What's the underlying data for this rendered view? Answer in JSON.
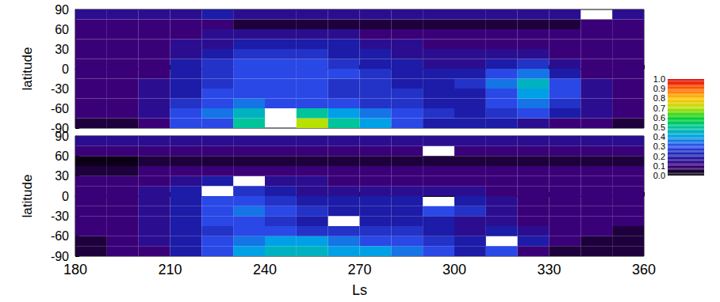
{
  "chart_data": [
    {
      "type": "heatmap",
      "y_label": "latitude",
      "tick_labels": "y",
      "x_edges": [
        180,
        190,
        200,
        210,
        220,
        230,
        240,
        250,
        260,
        270,
        280,
        290,
        300,
        310,
        320,
        330,
        340,
        350,
        360
      ],
      "y_edges": [
        -90,
        -75,
        -60,
        -45,
        -30,
        -15,
        0,
        15,
        30,
        45,
        60,
        75,
        90
      ],
      "cells": [
        [
          0.05,
          0.05,
          0.1,
          0.3,
          0.3,
          0.5,
          null,
          0.7,
          0.5,
          0.4,
          0.3,
          0.2,
          0.2,
          0.2,
          0.15,
          0.1,
          0.1,
          0.05
        ],
        [
          0.1,
          0.1,
          0.15,
          0.3,
          0.35,
          0.45,
          null,
          0.5,
          0.4,
          0.35,
          0.3,
          0.25,
          0.2,
          0.25,
          0.3,
          0.2,
          0.15,
          0.1
        ],
        [
          0.1,
          0.1,
          0.15,
          0.25,
          0.3,
          0.35,
          0.3,
          0.3,
          0.3,
          0.25,
          0.25,
          0.2,
          0.2,
          0.3,
          0.35,
          0.25,
          0.15,
          0.1
        ],
        [
          0.1,
          0.1,
          0.15,
          0.2,
          0.3,
          0.3,
          0.3,
          0.3,
          0.25,
          0.25,
          0.25,
          0.2,
          0.2,
          0.3,
          0.4,
          0.3,
          0.15,
          0.1
        ],
        [
          0.1,
          0.1,
          0.15,
          0.2,
          0.25,
          0.3,
          0.3,
          0.3,
          0.25,
          0.25,
          0.2,
          0.2,
          0.25,
          0.35,
          0.45,
          0.3,
          0.15,
          0.1
        ],
        [
          0.1,
          0.1,
          0.1,
          0.2,
          0.25,
          0.3,
          0.3,
          0.3,
          0.3,
          0.25,
          0.2,
          0.2,
          0.2,
          0.3,
          0.35,
          0.2,
          0.1,
          0.1
        ],
        [
          0.1,
          0.1,
          0.1,
          0.2,
          0.25,
          0.3,
          0.3,
          0.3,
          0.25,
          0.2,
          0.2,
          0.15,
          0.15,
          0.2,
          0.25,
          0.15,
          0.1,
          0.1
        ],
        [
          0.1,
          0.1,
          0.1,
          0.15,
          0.2,
          0.25,
          0.25,
          0.25,
          0.2,
          0.2,
          0.15,
          0.15,
          0.15,
          0.15,
          0.15,
          0.1,
          0.1,
          0.1
        ],
        [
          0.1,
          0.1,
          0.1,
          0.15,
          0.15,
          0.2,
          0.2,
          0.2,
          0.2,
          0.15,
          0.15,
          0.1,
          0.1,
          0.1,
          0.1,
          0.1,
          0.1,
          0.1
        ],
        [
          0.1,
          0.1,
          0.1,
          0.1,
          0.15,
          0.15,
          0.15,
          0.15,
          0.15,
          0.1,
          0.1,
          0.1,
          0.1,
          0.1,
          0.1,
          0.1,
          0.1,
          0.1
        ],
        [
          0.1,
          0.1,
          0.1,
          0.1,
          0.1,
          0.05,
          0.05,
          0.05,
          0.05,
          0.05,
          0.05,
          0.05,
          0.05,
          0.05,
          0.05,
          0.05,
          0.1,
          0.1
        ],
        [
          0.15,
          0.15,
          0.15,
          0.15,
          0.2,
          0.15,
          0.15,
          0.15,
          0.15,
          0.15,
          0.15,
          0.15,
          0.15,
          0.15,
          0.15,
          0.15,
          null,
          0.15
        ]
      ],
      "xlim": [
        180,
        360
      ],
      "xticks": [
        180,
        210,
        240,
        270,
        300,
        330,
        360
      ],
      "ylim": [
        -90,
        90
      ],
      "yticks": [
        -90,
        -60,
        -30,
        0,
        30,
        60,
        90
      ],
      "colorbar": {
        "range": [
          0,
          1
        ],
        "ticks": [
          {
            "value": 0,
            "label": "0.0"
          },
          0.1,
          0.2,
          0.3,
          0.4,
          0.5,
          0.6,
          0.7,
          0.8,
          0.9,
          {
            "value": 1,
            "label": "1.0"
          }
        ],
        "colors": [
          "#000000",
          "#3a0078",
          "#1c1ca8",
          "#2a48e6",
          "#00a0e6",
          "#00c49a",
          "#00d020",
          "#b8e000",
          "#ffc000",
          "#ff6000",
          "#e00000"
        ]
      }
    },
    {
      "type": "heatmap",
      "x_label": "Ls",
      "y_label": "latitude",
      "x_edges": [
        180,
        190,
        200,
        210,
        220,
        230,
        240,
        250,
        260,
        270,
        280,
        290,
        300,
        310,
        320,
        330,
        340,
        350,
        360
      ],
      "y_edges": [
        -90,
        -75,
        -60,
        -45,
        -30,
        -15,
        0,
        15,
        30,
        45,
        60,
        75,
        90
      ],
      "cells": [
        [
          0.05,
          0.1,
          0.1,
          0.2,
          0.3,
          0.4,
          0.45,
          0.45,
          0.4,
          0.4,
          0.35,
          0.3,
          0.2,
          0.3,
          0.1,
          0.05,
          0.05,
          0.05
        ],
        [
          0.05,
          0.1,
          0.15,
          0.2,
          0.3,
          0.35,
          0.4,
          0.4,
          0.35,
          0.3,
          0.3,
          0.25,
          0.2,
          null,
          0.2,
          0.1,
          0.05,
          0.05
        ],
        [
          0.1,
          0.1,
          0.15,
          0.2,
          0.25,
          0.3,
          0.3,
          0.25,
          0.25,
          0.25,
          0.25,
          0.2,
          0.15,
          0.2,
          0.15,
          0.1,
          0.1,
          0.05
        ],
        [
          0.1,
          0.1,
          0.15,
          0.2,
          0.3,
          0.3,
          0.25,
          0.2,
          null,
          0.2,
          0.2,
          0.2,
          0.15,
          0.15,
          0.1,
          0.1,
          0.1,
          0.1
        ],
        [
          0.1,
          0.1,
          0.15,
          0.2,
          0.3,
          0.35,
          0.3,
          0.25,
          0.2,
          0.2,
          0.2,
          0.3,
          0.25,
          0.15,
          0.1,
          0.1,
          0.1,
          0.1
        ],
        [
          0.1,
          0.1,
          0.15,
          0.2,
          0.3,
          0.3,
          0.25,
          0.2,
          0.2,
          0.2,
          0.2,
          null,
          0.2,
          0.15,
          0.1,
          0.1,
          0.1,
          0.1
        ],
        [
          0.1,
          0.1,
          0.15,
          0.2,
          null,
          0.25,
          0.2,
          0.15,
          0.15,
          0.15,
          0.15,
          0.15,
          0.15,
          0.1,
          0.1,
          0.1,
          0.1,
          0.1
        ],
        [
          0.1,
          0.1,
          0.1,
          0.15,
          0.2,
          null,
          0.15,
          0.15,
          0.1,
          0.1,
          0.1,
          0.1,
          0.1,
          0.1,
          0.1,
          0.1,
          0.1,
          0.1
        ],
        [
          0.05,
          0.05,
          0.1,
          0.1,
          0.1,
          0.1,
          0.1,
          0.1,
          0.1,
          0.1,
          0.1,
          0.1,
          0.1,
          0.1,
          0.1,
          0.1,
          0.1,
          0.1
        ],
        [
          0.02,
          0.02,
          0.05,
          0.05,
          0.05,
          0.05,
          0.05,
          0.05,
          0.05,
          0.05,
          0.05,
          0.05,
          0.05,
          0.05,
          0.05,
          0.05,
          0.05,
          0.05
        ],
        [
          0.1,
          0.1,
          0.1,
          0.1,
          0.1,
          0.1,
          0.1,
          0.1,
          0.1,
          0.1,
          0.1,
          null,
          0.1,
          0.1,
          0.1,
          0.1,
          0.1,
          0.1
        ],
        [
          0.15,
          0.15,
          0.15,
          0.15,
          0.15,
          0.15,
          0.15,
          0.15,
          0.15,
          0.15,
          0.15,
          0.15,
          0.15,
          0.15,
          0.15,
          0.15,
          0.15,
          0.15
        ]
      ],
      "xlim": [
        180,
        360
      ],
      "xticks": [
        180,
        210,
        240,
        270,
        300,
        330,
        360
      ],
      "ylim": [
        -90,
        90
      ],
      "yticks": [
        -90,
        -60,
        -30,
        0,
        30,
        60,
        90
      ]
    }
  ]
}
